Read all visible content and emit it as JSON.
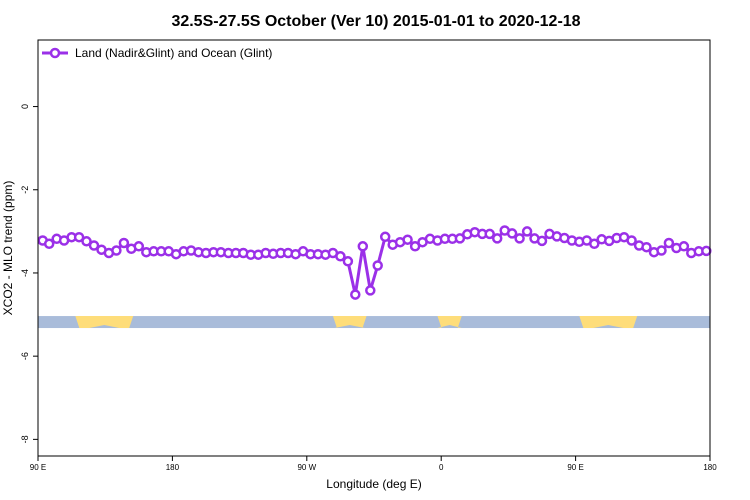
{
  "chart_data": {
    "type": "line",
    "title": "32.5S-27.5S October (Ver 10)   2015-01-01 to 2020-12-18",
    "xlabel": "Longitude (deg E)",
    "ylabel": "XCO2 - MLO trend (ppm)",
    "xlim": [
      90,
      450
    ],
    "ylim": [
      -8.4,
      1.6
    ],
    "x_ticks": [
      {
        "value": 90,
        "label": "90 E"
      },
      {
        "value": 162,
        "label": "180"
      },
      {
        "value": 234,
        "label": "90 W"
      },
      {
        "value": 306,
        "label": "0"
      },
      {
        "value": 378,
        "label": "90 E"
      },
      {
        "value": 450,
        "label": "180"
      }
    ],
    "y_ticks": [
      {
        "value": 0,
        "label": "0"
      },
      {
        "value": -2,
        "label": "-2"
      },
      {
        "value": -4,
        "label": "-4"
      },
      {
        "value": -6,
        "label": "-6"
      },
      {
        "value": -8,
        "label": "-8"
      }
    ],
    "grid": false,
    "legend_position": "top-left",
    "series": [
      {
        "name": "Land (Nadir&Glint) and Ocean (Glint)",
        "color": "#9b30e8",
        "marker": "open-circle",
        "x": [
          92.5,
          96,
          100,
          104,
          108,
          112,
          116,
          120,
          124,
          128,
          132,
          136,
          140,
          144,
          148,
          152,
          156,
          160,
          164,
          168,
          172,
          176,
          180,
          184,
          188,
          192,
          196,
          200,
          204,
          208,
          212,
          216,
          220,
          224,
          228,
          232,
          236,
          240,
          244,
          248,
          252,
          256,
          260,
          264,
          268,
          272,
          276,
          280,
          284,
          288,
          292,
          296,
          300,
          304,
          308,
          312,
          316,
          320,
          324,
          328,
          332,
          336,
          340,
          344,
          348,
          352,
          356,
          360,
          364,
          368,
          372,
          376,
          380,
          384,
          388,
          392,
          396,
          400,
          404,
          408,
          412,
          416,
          420,
          424,
          428,
          432,
          436,
          440,
          444,
          448
        ],
        "y": [
          -3.22,
          -3.3,
          -3.18,
          -3.22,
          -3.14,
          -3.14,
          -3.24,
          -3.34,
          -3.44,
          -3.52,
          -3.46,
          -3.28,
          -3.42,
          -3.36,
          -3.5,
          -3.48,
          -3.48,
          -3.48,
          -3.55,
          -3.48,
          -3.46,
          -3.5,
          -3.52,
          -3.5,
          -3.5,
          -3.52,
          -3.52,
          -3.52,
          -3.56,
          -3.56,
          -3.52,
          -3.54,
          -3.52,
          -3.52,
          -3.55,
          -3.48,
          -3.55,
          -3.55,
          -3.56,
          -3.52,
          -3.6,
          -3.72,
          -4.52,
          -3.36,
          -4.42,
          -3.82,
          -3.13,
          -3.32,
          -3.26,
          -3.2,
          -3.36,
          -3.26,
          -3.18,
          -3.22,
          -3.18,
          -3.18,
          -3.17,
          -3.07,
          -3.02,
          -3.06,
          -3.06,
          -3.17,
          -2.98,
          -3.05,
          -3.17,
          -3.0,
          -3.17,
          -3.23,
          -3.06,
          -3.12,
          -3.16,
          -3.22,
          -3.25,
          -3.22,
          -3.3,
          -3.19,
          -3.23,
          -3.16,
          -3.14,
          -3.22,
          -3.34,
          -3.38,
          -3.5,
          -3.46,
          -3.28,
          -3.4,
          -3.36,
          -3.52,
          -3.48,
          -3.47
        ]
      }
    ],
    "land_ocean_strip": {
      "y": -5.18,
      "ocean_color": "#a9bcda",
      "land_color": "#fedd7a",
      "land_spans": [
        [
          110,
          141
        ],
        [
          248,
          266
        ],
        [
          304,
          317
        ],
        [
          380,
          411
        ]
      ]
    }
  }
}
